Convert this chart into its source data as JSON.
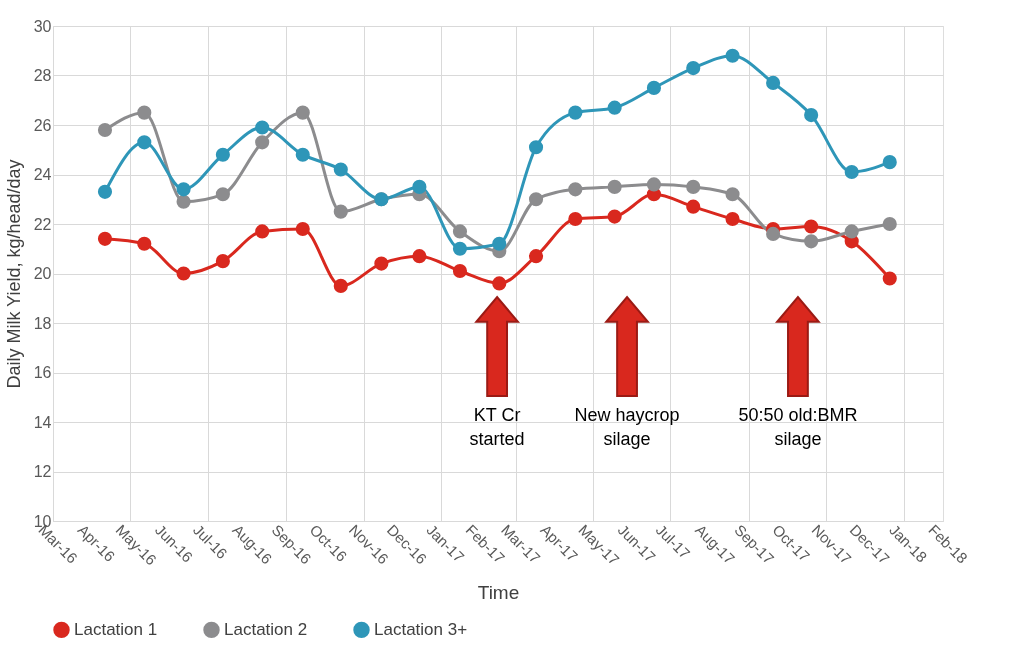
{
  "chart_data": {
    "type": "line",
    "xlabel": "Time",
    "ylabel": "Daily Milk Yield, kg/head/day",
    "x": [
      "2016-04-11",
      "2016-05-12",
      "2016-06-12",
      "2016-07-13",
      "2016-08-13",
      "2016-09-14",
      "2016-10-14",
      "2016-11-15",
      "2016-12-15",
      "2017-01-16",
      "2017-02-16",
      "2017-03-17",
      "2017-04-17",
      "2017-05-18",
      "2017-06-18",
      "2017-07-19",
      "2017-08-19",
      "2017-09-20",
      "2017-10-20",
      "2017-11-21",
      "2017-12-21"
    ],
    "series": [
      {
        "name": "Lactation 1",
        "color": "#d9281e",
        "values": [
          21.4,
          21.2,
          20.0,
          20.5,
          21.7,
          21.8,
          19.5,
          20.4,
          20.7,
          20.1,
          19.6,
          20.7,
          22.2,
          22.3,
          23.2,
          22.7,
          22.2,
          21.8,
          21.9,
          21.3,
          19.8
        ]
      },
      {
        "name": "Lactation 2",
        "color": "#8c8c8e",
        "values": [
          25.8,
          26.5,
          22.9,
          23.2,
          25.3,
          26.5,
          22.5,
          23.0,
          23.2,
          21.7,
          20.9,
          23.0,
          23.4,
          23.5,
          23.6,
          23.5,
          23.2,
          21.6,
          21.3,
          21.7,
          22.0
        ]
      },
      {
        "name": "Lactation 3+",
        "color": "#2e96b8",
        "values": [
          23.3,
          25.3,
          23.4,
          24.8,
          25.9,
          24.8,
          24.2,
          23.0,
          23.5,
          21.0,
          21.2,
          25.1,
          26.5,
          26.7,
          27.5,
          28.3,
          28.8,
          27.7,
          26.4,
          24.1,
          24.5
        ]
      }
    ],
    "xlim": [
      "2016-03-01",
      "2018-02-01"
    ],
    "xticks": [
      {
        "value": "2016-03-01",
        "label": "Mar-16"
      },
      {
        "value": "2016-04-01",
        "label": "Apr-16"
      },
      {
        "value": "2016-05-01",
        "label": "May-16"
      },
      {
        "value": "2016-06-01",
        "label": "Jun-16"
      },
      {
        "value": "2016-07-01",
        "label": "Jul-16"
      },
      {
        "value": "2016-08-01",
        "label": "Aug-16"
      },
      {
        "value": "2016-09-01",
        "label": "Sep-16"
      },
      {
        "value": "2016-10-01",
        "label": "Oct-16"
      },
      {
        "value": "2016-11-01",
        "label": "Nov-16"
      },
      {
        "value": "2016-12-01",
        "label": "Dec-16"
      },
      {
        "value": "2017-01-01",
        "label": "Jan-17"
      },
      {
        "value": "2017-02-01",
        "label": "Feb-17"
      },
      {
        "value": "2017-03-01",
        "label": "Mar-17"
      },
      {
        "value": "2017-04-01",
        "label": "Apr-17"
      },
      {
        "value": "2017-05-01",
        "label": "May-17"
      },
      {
        "value": "2017-06-01",
        "label": "Jun-17"
      },
      {
        "value": "2017-07-01",
        "label": "Jul-17"
      },
      {
        "value": "2017-08-01",
        "label": "Aug-17"
      },
      {
        "value": "2017-09-01",
        "label": "Sep-17"
      },
      {
        "value": "2017-10-01",
        "label": "Oct-17"
      },
      {
        "value": "2017-11-01",
        "label": "Nov-17"
      },
      {
        "value": "2017-12-01",
        "label": "Dec-17"
      },
      {
        "value": "2018-01-01",
        "label": "Jan-18"
      },
      {
        "value": "2018-02-01",
        "label": "Feb-18"
      }
    ],
    "ylim": [
      10,
      30
    ],
    "yticks": [
      10,
      12,
      14,
      16,
      18,
      20,
      22,
      24,
      26,
      28,
      30
    ],
    "grid": true,
    "legend": "bottom",
    "marker": "circle",
    "line_style": "solid",
    "annotations": [
      "KT Cr\nstarted",
      "New haycrop\nsilage",
      "50:50 old:BMR\nsilage"
    ]
  }
}
